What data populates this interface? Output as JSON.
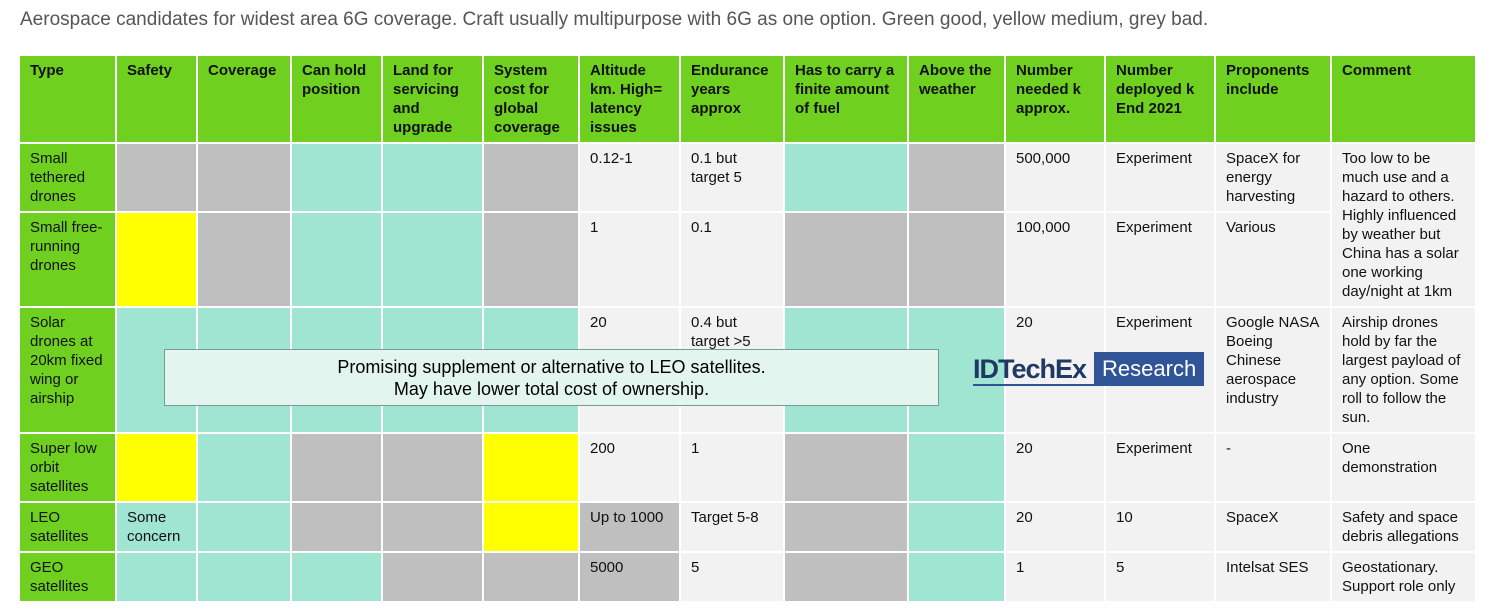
{
  "title": "Aerospace candidates for widest area 6G coverage. Craft usually multipurpose with 6G as one option. Green good, yellow medium, grey bad.",
  "table": {
    "header": [
      "Type",
      "Safety",
      "Coverage",
      "Can hold position",
      "Land for servicing and upgrade",
      "System cost for global coverage",
      "Altitude km. High= latency issues",
      "Endurance years approx",
      "Has to carry a finite amount of fuel",
      "Above the weather",
      "Number needed k approx.",
      "Number deployed k End 2021",
      "Proponents include",
      "Comment"
    ],
    "rows": [
      {
        "type": "Small tethered drones",
        "altitude": "0.12-1",
        "endurance": "0.1 but target  5",
        "needed": "500,000",
        "deployed": "Experiment",
        "proponents": "SpaceX for energy harvesting",
        "comment": "Too low to be much use and a hazard to others. Highly influenced by weather but China has a solar one working day/night at 1km"
      },
      {
        "type": "Small free-running drones",
        "altitude": "1",
        "endurance": "0.1",
        "needed": "100,000",
        "deployed": "Experiment",
        "proponents": "Various"
      },
      {
        "type": "Solar drones at 20km fixed wing or airship",
        "altitude": "20",
        "endurance": "0.4 but target >5",
        "needed": "20",
        "deployed": "Experiment",
        "proponents": "Google NASA Boeing Chinese aerospace industry",
        "comment": "Airship drones hold by far the largest payload of any option. Some roll to follow the sun."
      },
      {
        "type": "Super low orbit satellites",
        "altitude": "200",
        "endurance": "1",
        "needed": "20",
        "deployed": "Experiment",
        "proponents": "-",
        "comment": "One demonstration"
      },
      {
        "type": "LEO satellites",
        "safety": "Some concern",
        "altitude": "Up to 1000",
        "endurance": "Target 5-8",
        "needed": "20",
        "deployed": "10",
        "proponents": "SpaceX",
        "comment": "Safety and space debris allegations"
      },
      {
        "type": "GEO satellites",
        "altitude": "5000",
        "endurance": "5",
        "needed": "1",
        "deployed": "5",
        "proponents": "Intelsat SES",
        "comment": "Geostationary. Support role only"
      }
    ]
  },
  "callout": {
    "line1": "Promising supplement or alternative to LEO satellites.",
    "line2": "May have lower total cost of ownership."
  },
  "logo": {
    "brand": "IDTechEx",
    "tag": "Research"
  }
}
